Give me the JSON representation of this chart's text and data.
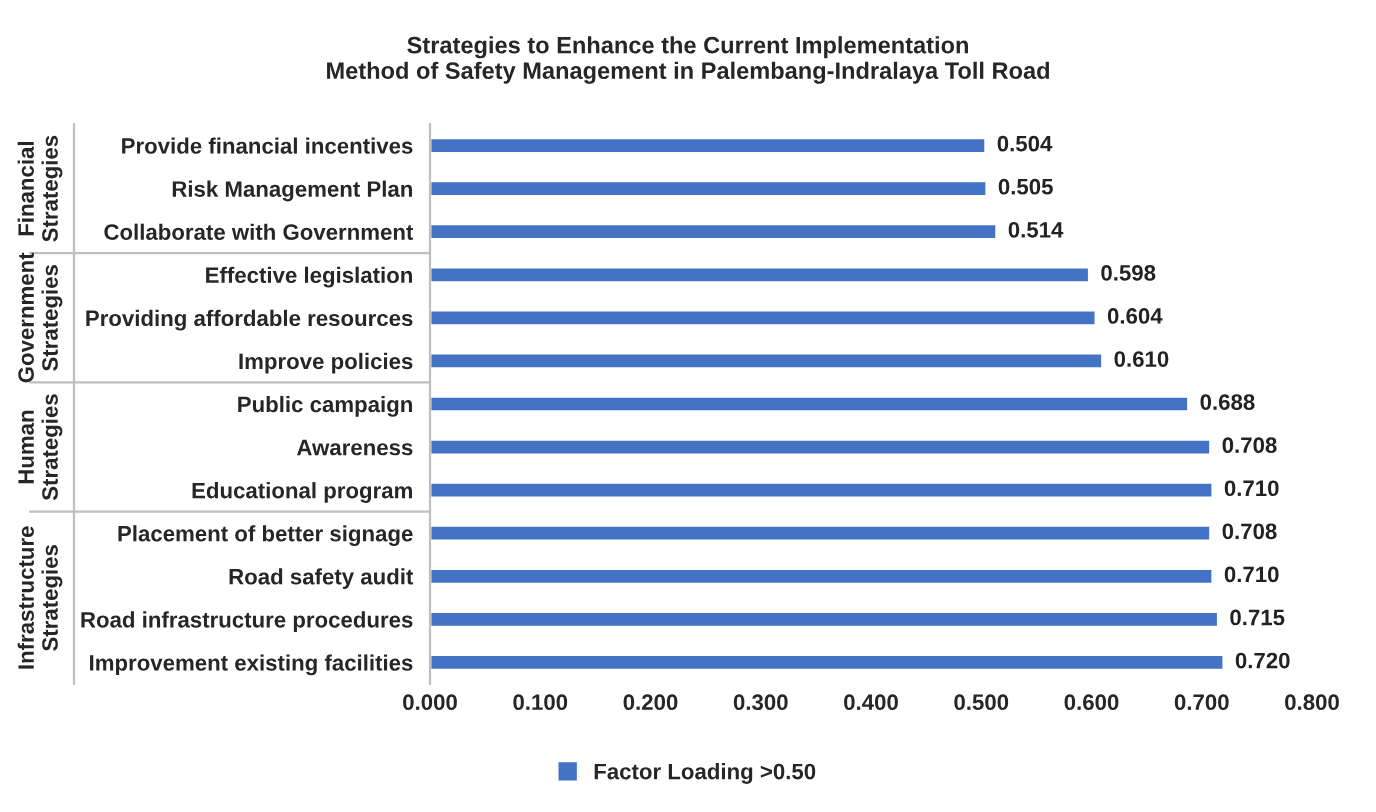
{
  "chart_data": {
    "type": "bar",
    "orientation": "horizontal",
    "title": "Strategies to Enhance the Current Implementation\nMethod of Safety Management in Palembang-Indralaya Toll Road",
    "categories": [
      "Provide financial incentives",
      "Risk Management Plan",
      "Collaborate with Government",
      "Effective legislation",
      "Providing affordable resources",
      "Improve policies",
      "Public campaign",
      "Awareness",
      "Educational program",
      "Placement of better signage",
      "Road safety audit",
      "Road infrastructure procedures",
      "Improvement existing facilities"
    ],
    "series": [
      {
        "name": "Factor Loading >0.50",
        "color": "#4472c4",
        "values": [
          0.504,
          0.505,
          0.514,
          0.598,
          0.604,
          0.61,
          0.688,
          0.708,
          0.71,
          0.708,
          0.71,
          0.715,
          0.72
        ],
        "value_labels": [
          "0.504",
          "0.505",
          "0.514",
          "0.598",
          "0.604",
          "0.610",
          "0.688",
          "0.708",
          "0.710",
          "0.708",
          "0.710",
          "0.715",
          "0.720"
        ]
      }
    ],
    "xlim": [
      0,
      0.8
    ],
    "xticks": [
      {
        "value": 0,
        "label": "0.000"
      },
      {
        "value": 0.1,
        "label": "0.100"
      },
      {
        "value": 0.2,
        "label": "0.200"
      },
      {
        "value": 0.3,
        "label": "0.300"
      },
      {
        "value": 0.4,
        "label": "0.400"
      },
      {
        "value": 0.5,
        "label": "0.500"
      },
      {
        "value": 0.6,
        "label": "0.600"
      },
      {
        "value": 0.7,
        "label": "0.700"
      },
      {
        "value": 0.8,
        "label": "0.800"
      }
    ],
    "annotations": [
      "Financial\nStrategies",
      "Government\nStrategies",
      "Human\nStrategies",
      "Infrastructure\nStrategies"
    ],
    "legend": "bottom",
    "grid": false
  }
}
